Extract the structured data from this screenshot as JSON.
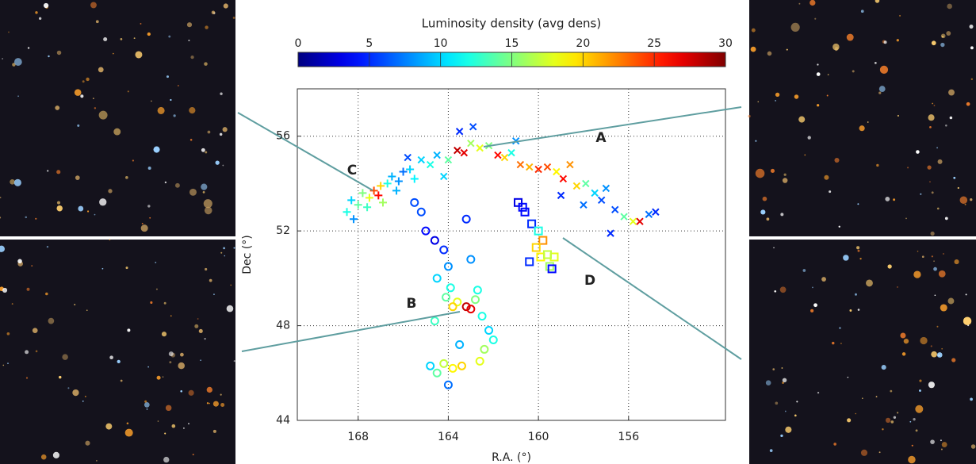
{
  "chart_data": {
    "type": "scatter",
    "xlabel": "R.A. (°)",
    "ylabel": "Dec (°)",
    "xlim": [
      170.7,
      151.7
    ],
    "ylim": [
      44,
      58
    ],
    "xticks": [
      168,
      164,
      160,
      156
    ],
    "yticks": [
      44,
      48,
      52,
      56
    ],
    "grid": true,
    "colormap": "jet",
    "colorbar": {
      "label": "Luminosity density (avg dens)",
      "lim": [
        0,
        30
      ],
      "ticks": [
        0,
        5,
        10,
        15,
        20,
        25,
        30
      ]
    },
    "annotations": [
      "A",
      "B",
      "C",
      "D"
    ],
    "series": [
      {
        "marker": "plus",
        "x": [
          168.5,
          168.3,
          168.0,
          167.8,
          167.5,
          167.3,
          167.1,
          167.0,
          166.7,
          166.5,
          166.2,
          166.0,
          165.7,
          165.5,
          168.2,
          167.6,
          166.9,
          166.3
        ],
        "y": [
          52.8,
          53.3,
          53.1,
          53.6,
          53.4,
          53.7,
          53.5,
          53.9,
          54.0,
          54.3,
          54.1,
          54.5,
          54.6,
          54.2,
          52.5,
          53.0,
          53.2,
          53.7
        ],
        "values": [
          12,
          10,
          14,
          15,
          18,
          24,
          26,
          20,
          12,
          9,
          8,
          7,
          10,
          11,
          8,
          13,
          16,
          9
        ]
      },
      {
        "marker": "cross",
        "x": [
          165.8,
          165.2,
          164.8,
          164.5,
          164.0,
          163.6,
          163.3,
          163.0,
          162.6,
          162.2,
          161.8,
          161.5,
          161.2,
          160.8,
          160.4,
          160.0,
          159.6,
          159.2,
          158.9,
          158.6,
          158.3,
          157.9,
          157.5,
          157.0,
          156.6,
          156.2,
          155.8,
          155.5,
          155.1,
          154.8,
          163.5,
          162.9,
          161.0,
          159.0,
          158.0,
          157.2,
          156.8,
          164.2
        ],
        "y": [
          55.1,
          55.0,
          54.8,
          55.2,
          55.0,
          55.4,
          55.3,
          55.7,
          55.5,
          55.6,
          55.2,
          55.1,
          55.3,
          54.8,
          54.7,
          54.6,
          54.7,
          54.5,
          54.2,
          54.8,
          53.9,
          54.0,
          53.6,
          53.8,
          52.9,
          52.6,
          52.4,
          52.4,
          52.7,
          52.8,
          56.2,
          56.4,
          55.8,
          53.5,
          53.1,
          53.3,
          51.9,
          54.3
        ],
        "values": [
          6,
          10,
          12,
          9,
          14,
          28,
          27,
          16,
          18,
          15,
          26,
          20,
          12,
          23,
          21,
          25,
          24,
          19,
          26,
          22,
          20,
          14,
          10,
          8,
          6,
          14,
          18,
          27,
          7,
          5,
          5,
          6,
          8,
          5,
          7,
          6,
          5,
          10
        ]
      },
      {
        "marker": "circle",
        "x": [
          165.5,
          165.0,
          164.6,
          164.2,
          164.0,
          164.5,
          163.9,
          164.1,
          163.6,
          163.8,
          163.2,
          163.0,
          162.8,
          162.5,
          162.2,
          162.0,
          162.4,
          162.6,
          163.4,
          163.8,
          164.2,
          164.5,
          164.8,
          163.5,
          163.0,
          162.7,
          164.0,
          163.2,
          165.2,
          164.6
        ],
        "y": [
          53.2,
          52.0,
          51.6,
          51.2,
          50.5,
          50.0,
          49.6,
          49.2,
          49.0,
          48.8,
          48.8,
          48.7,
          49.1,
          48.4,
          47.8,
          47.4,
          47.0,
          46.5,
          46.3,
          46.2,
          46.4,
          46.0,
          46.3,
          47.2,
          50.8,
          49.5,
          45.5,
          52.5,
          52.8,
          48.2
        ],
        "values": [
          6,
          4,
          3,
          5,
          8,
          10,
          12,
          14,
          18,
          20,
          28,
          27,
          15,
          12,
          10,
          12,
          16,
          18,
          20,
          19,
          17,
          14,
          10,
          9,
          8,
          12,
          7,
          5,
          6,
          13
        ]
      },
      {
        "marker": "square",
        "x": [
          160.9,
          160.6,
          160.3,
          160.0,
          159.8,
          160.1,
          159.9,
          159.5,
          159.3,
          159.6,
          160.4,
          159.4,
          160.7
        ],
        "y": [
          53.2,
          52.8,
          52.3,
          52.0,
          51.6,
          51.3,
          50.9,
          50.5,
          50.9,
          51.0,
          50.7,
          50.4,
          53.0
        ],
        "values": [
          3,
          4,
          5,
          12,
          22,
          20,
          19,
          16,
          18,
          17,
          5,
          4,
          4
        ]
      }
    ]
  }
}
